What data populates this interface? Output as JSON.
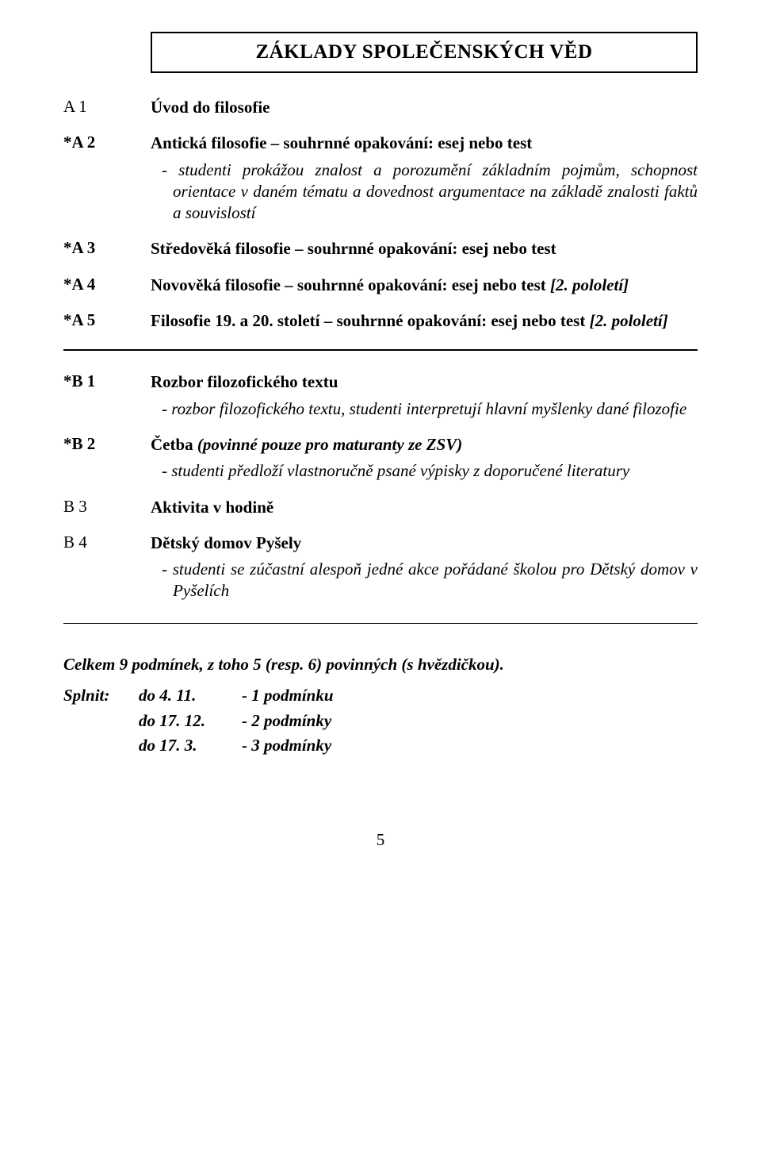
{
  "title": "ZÁKLADY SPOLEČENSKÝCH VĚD",
  "sectionA": [
    {
      "label": "A 1",
      "labelBold": false,
      "title": "Úvod do filosofie",
      "titleItalicTail": "",
      "note": ""
    },
    {
      "label": "*A 2",
      "labelBold": true,
      "title": "Antická filosofie – souhrnné opakování: esej nebo test",
      "titleItalicTail": "",
      "note": "- studenti prokážou znalost a porozumění základním pojmům, schopnost orientace v daném tématu a dovednost argumentace na základě znalosti faktů a souvislostí"
    },
    {
      "label": "*A 3",
      "labelBold": true,
      "title": "Středověká filosofie – souhrnné opakování: esej nebo test",
      "titleItalicTail": "",
      "note": ""
    },
    {
      "label": "*A 4",
      "labelBold": true,
      "title": "Novověká filosofie  – souhrnné opakování: esej nebo test",
      "titleItalicTail": " [2. pololetí]",
      "note": ""
    },
    {
      "label": "*A 5",
      "labelBold": true,
      "title": "Filosofie 19. a 20. století – souhrnné opakování: esej nebo test",
      "titleItalicTail": " [2. pololetí]",
      "note": ""
    }
  ],
  "sectionB": [
    {
      "label": "*B 1",
      "labelBold": true,
      "title": "Rozbor filozofického textu",
      "titleItalicTail": "",
      "note": "- rozbor filozofického textu, studenti interpretují hlavní myšlenky dané filozofie"
    },
    {
      "label": "*B 2",
      "labelBold": true,
      "title": "Četba",
      "titleItalicTail": " (povinné pouze pro maturanty ze ZSV)",
      "note": "- studenti předloží vlastnoručně psané výpisky z doporučené literatury"
    },
    {
      "label": "B 3",
      "labelBold": false,
      "title": "Aktivita v hodině",
      "titleItalicTail": "",
      "note": ""
    },
    {
      "label": "B 4",
      "labelBold": false,
      "title": "Dětský domov Pyšely",
      "titleItalicTail": "",
      "note": "- studenti se zúčastní alespoň jedné akce pořádané školou pro Dětský domov v Pyšelích"
    }
  ],
  "summary": {
    "title": "Celkem 9 podmínek, z toho 5 (resp. 6) povinných (s hvězdičkou).",
    "label": "Splnit:",
    "lines": [
      {
        "date": "do 4. 11.",
        "cond": "-  1 podmínku"
      },
      {
        "date": "do 17. 12.",
        "cond": "-  2 podmínky"
      },
      {
        "date": "do 17. 3.",
        "cond": "-  3 podmínky"
      }
    ]
  },
  "pageNumber": "5"
}
